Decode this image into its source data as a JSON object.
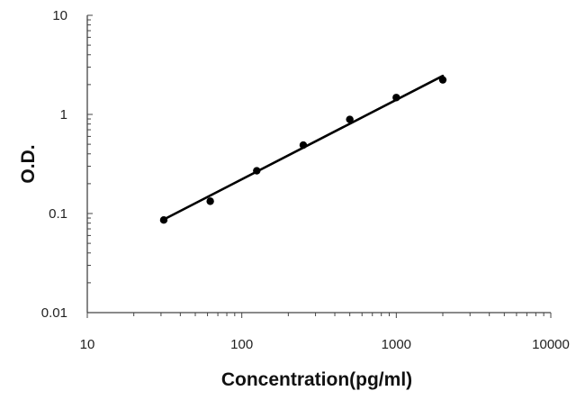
{
  "chart_data": {
    "type": "scatter",
    "x_scale": "log",
    "y_scale": "log",
    "xlabel": "Concentration(pg/ml)",
    "ylabel": "O.D.",
    "xlim": [
      10,
      10000
    ],
    "ylim": [
      0.01,
      10
    ],
    "x_ticks": [
      "10",
      "100",
      "1000",
      "10000"
    ],
    "y_ticks": [
      "0.01",
      "0.1",
      "1",
      "10"
    ],
    "grid": false,
    "legend": "none",
    "points": [
      {
        "x": 31.25,
        "y": 0.086
      },
      {
        "x": 62.5,
        "y": 0.133
      },
      {
        "x": 125,
        "y": 0.27
      },
      {
        "x": 250,
        "y": 0.49
      },
      {
        "x": 500,
        "y": 0.89
      },
      {
        "x": 1000,
        "y": 1.48
      },
      {
        "x": 2000,
        "y": 2.23
      }
    ],
    "fit_line": {
      "start": {
        "x": 31.25,
        "y": 0.087
      },
      "end": {
        "x": 2000,
        "y": 2.45
      }
    },
    "colors": {
      "points": "#000000",
      "line": "#000000",
      "axis": "#444444"
    }
  }
}
